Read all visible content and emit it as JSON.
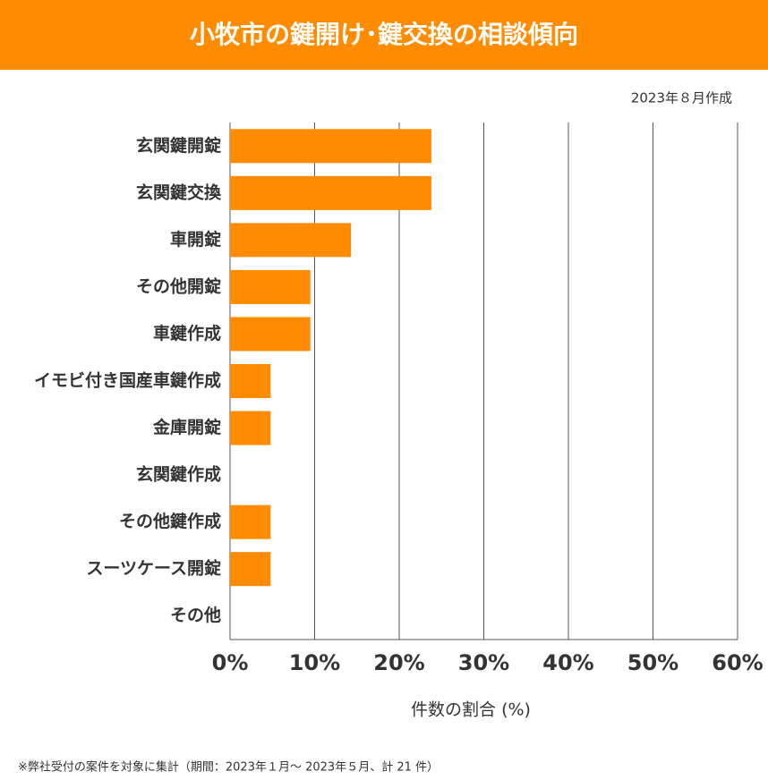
{
  "chart_data": {
    "type": "bar",
    "orientation": "horizontal",
    "title": "小牧市の鍵開け･鍵交換の相談傾向",
    "subtitle": "2023年８月作成",
    "x_label": "件数の割合 (%)",
    "note": "※弊社受付の案件を対象に集計（期間：2023年１月～ 2023年５月、計 21 件）",
    "categories": [
      "玄関鍵開錠",
      "玄関鍵交換",
      "車開錠",
      "その他開錠",
      "車鍵作成",
      "イモビ付き国産車鍵作成",
      "金庫開錠",
      "玄関鍵作成",
      "その他鍵作成",
      "スーツケース開錠",
      "その他"
    ],
    "values": [
      23.8,
      23.8,
      14.3,
      9.5,
      9.5,
      4.8,
      4.8,
      0,
      4.8,
      4.8,
      0
    ],
    "color": "#ff8c00",
    "xlim": [
      0,
      60
    ],
    "xticks": [
      {
        "value": 0,
        "label": "0%"
      },
      {
        "value": 10,
        "label": "10%"
      },
      {
        "value": 20,
        "label": "20%"
      },
      {
        "value": 30,
        "label": "30%"
      },
      {
        "value": 40,
        "label": "40%"
      },
      {
        "value": 50,
        "label": "50%"
      },
      {
        "value": 60,
        "label": "60%"
      }
    ],
    "grid": true
  }
}
